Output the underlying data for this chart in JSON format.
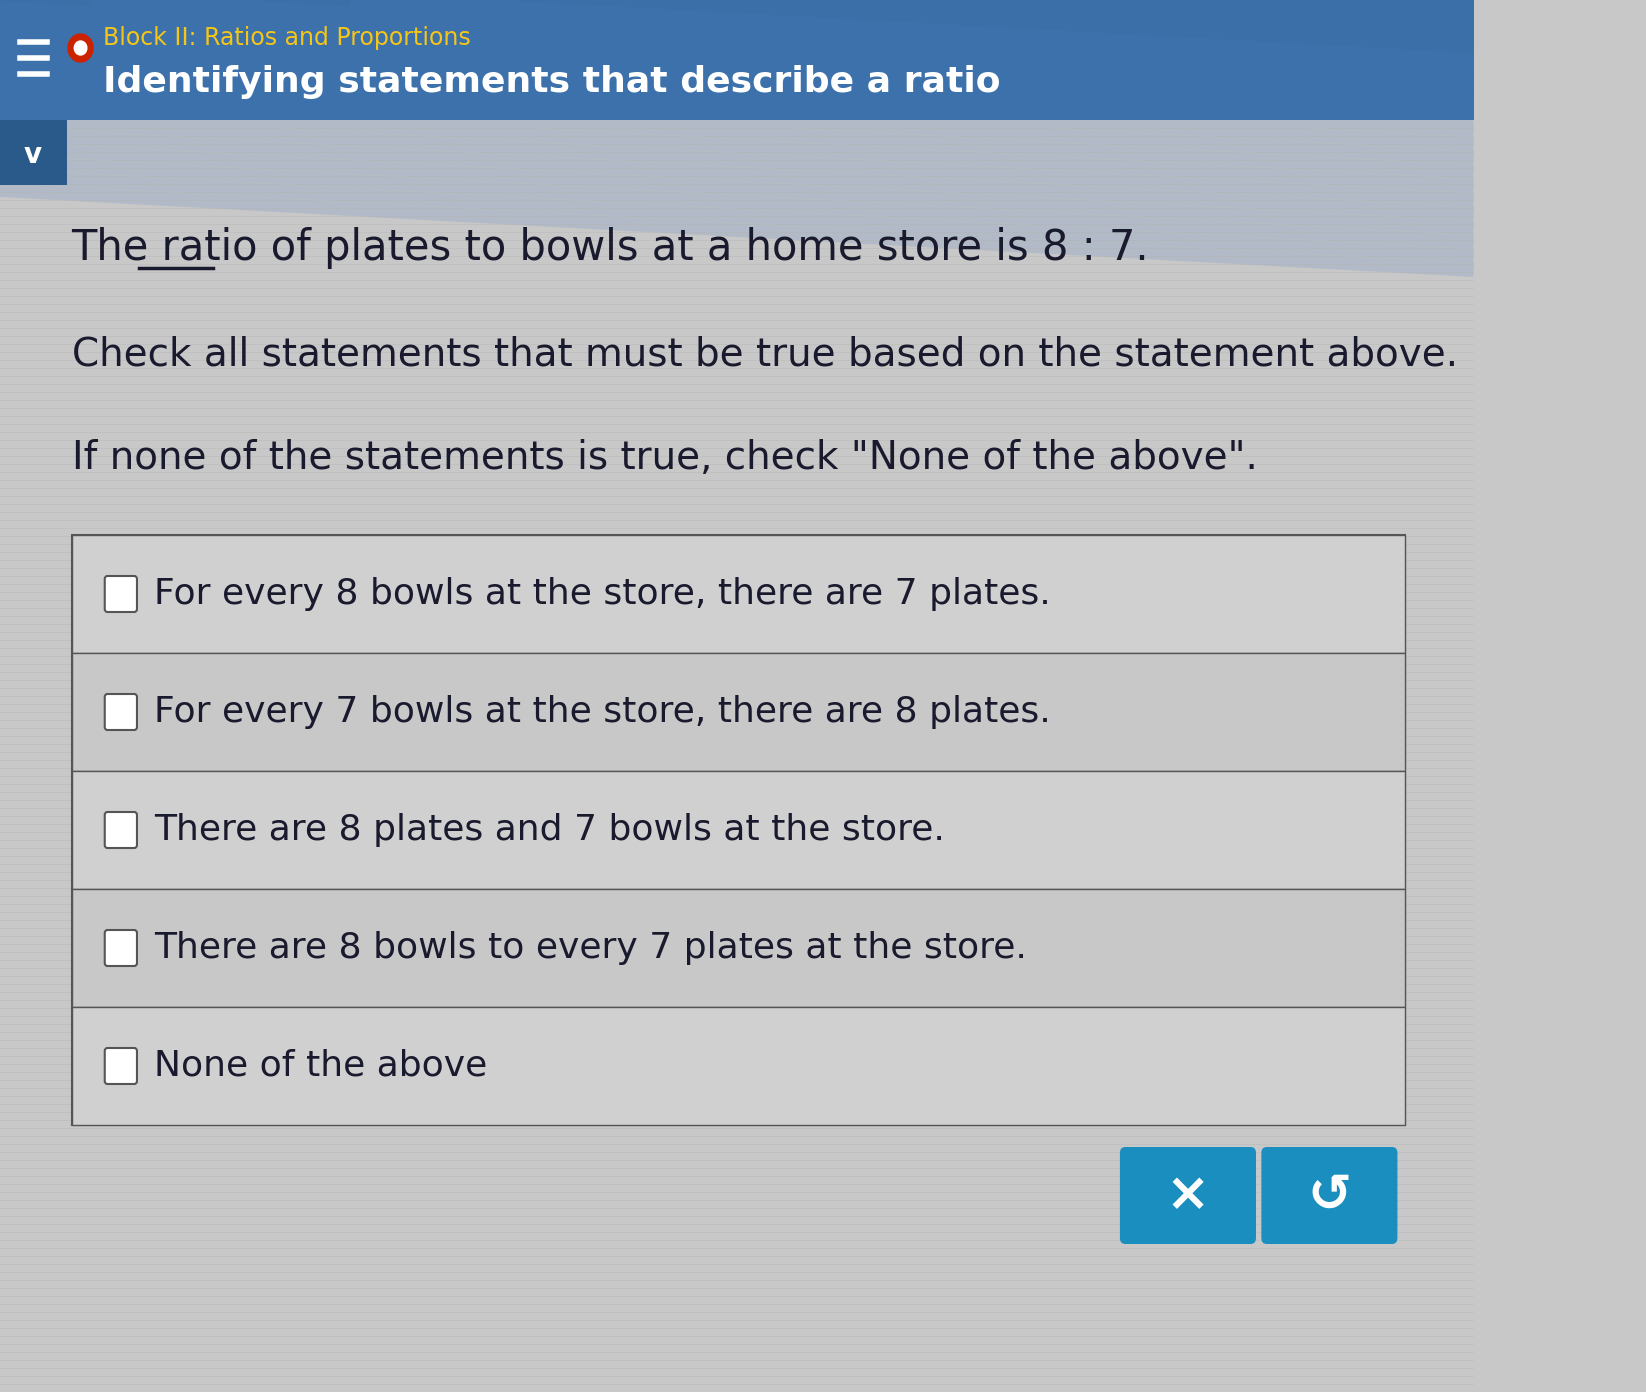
{
  "header_bg": "#3a6fa8",
  "header_stripe_color": "#4a7fbf",
  "header_subtitle_color": "#f5c518",
  "header_title_color": "#ffffff",
  "header_subtitle": "Block II: Ratios and Proportions",
  "header_title": "Identifying statements that describe a ratio",
  "body_bg": "#c8c8c8",
  "body_text_color": "#1a1a2e",
  "table_border": "#555555",
  "checkbox_color": "#ffffff",
  "checkbox_border": "#555555",
  "options": [
    "For every 8 bowls at the store, there are 7 plates.",
    "For every 7 bowls at the store, there are 8 plates.",
    "There are 8 plates and 7 bowls at the store.",
    "There are 8 bowls to every 7 plates at the store.",
    "None of the above"
  ],
  "button_x_bg": "#1a8fbf",
  "button_x_text": "×",
  "button_refresh_bg": "#1a8fbf",
  "button_refresh_text": "↺",
  "red_dot_color": "#cc2200",
  "hamburger_color": "#ffffff"
}
